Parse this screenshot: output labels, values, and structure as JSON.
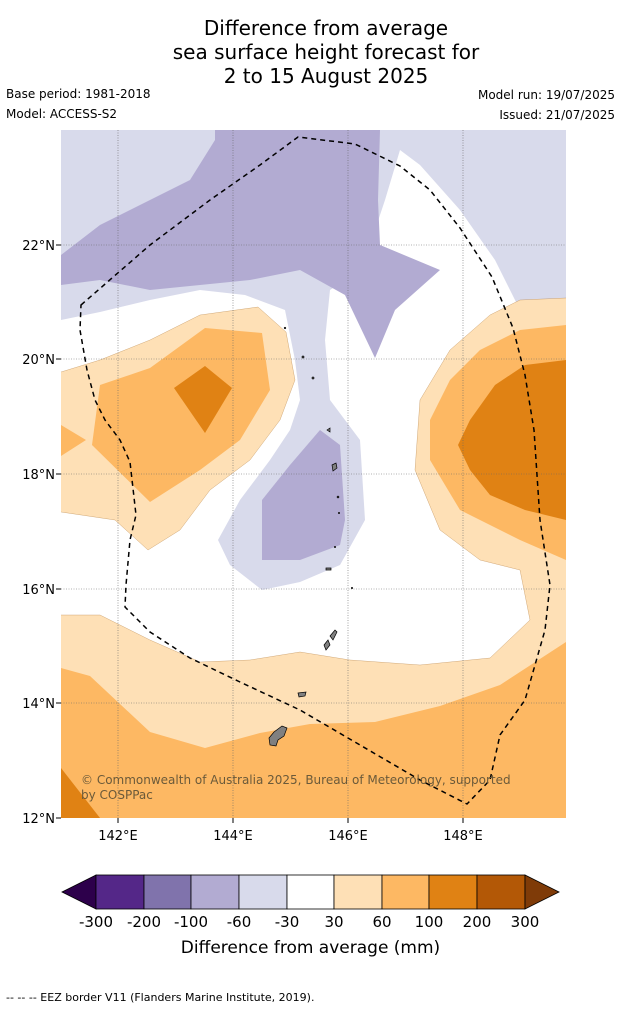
{
  "title": {
    "line1": "Difference from average",
    "line2": "sea surface height forecast for",
    "line3": "2 to 15 August 2025"
  },
  "meta": {
    "base_period": "Base period: 1981-2018",
    "model": "Model: ACCESS-S2",
    "model_run": "Model run: 19/07/2025",
    "issued": "Issued: 21/07/2025"
  },
  "map": {
    "lon_range": [
      141,
      149.8
    ],
    "lat_range": [
      12,
      24
    ],
    "lon_ticks": [
      "142°E",
      "144°E",
      "146°E",
      "148°E"
    ],
    "lat_ticks": [
      "12°N",
      "14°N",
      "16°N",
      "18°N",
      "20°N",
      "22°N"
    ],
    "gridlines": true,
    "copyright_line1": "© Commonwealth of Australia 2025, Bureau of Meteorology, supported",
    "copyright_line2": "by COSPPac"
  },
  "colorbar": {
    "label": "Difference from average (mm)",
    "tick_labels": [
      "-300",
      "-200",
      "-100",
      "-60",
      "-30",
      "30",
      "60",
      "100",
      "200",
      "300"
    ],
    "colors": [
      "#2d004b",
      "#542788",
      "#8073ac",
      "#b2abd2",
      "#d8daeb",
      "#ffffff",
      "#fee0b6",
      "#fdb863",
      "#e08214",
      "#b35806",
      "#7f3b08"
    ]
  },
  "footer": {
    "eez_note": "--  --  -- EEZ border V11 (Flanders Marine Institute, 2019)."
  }
}
